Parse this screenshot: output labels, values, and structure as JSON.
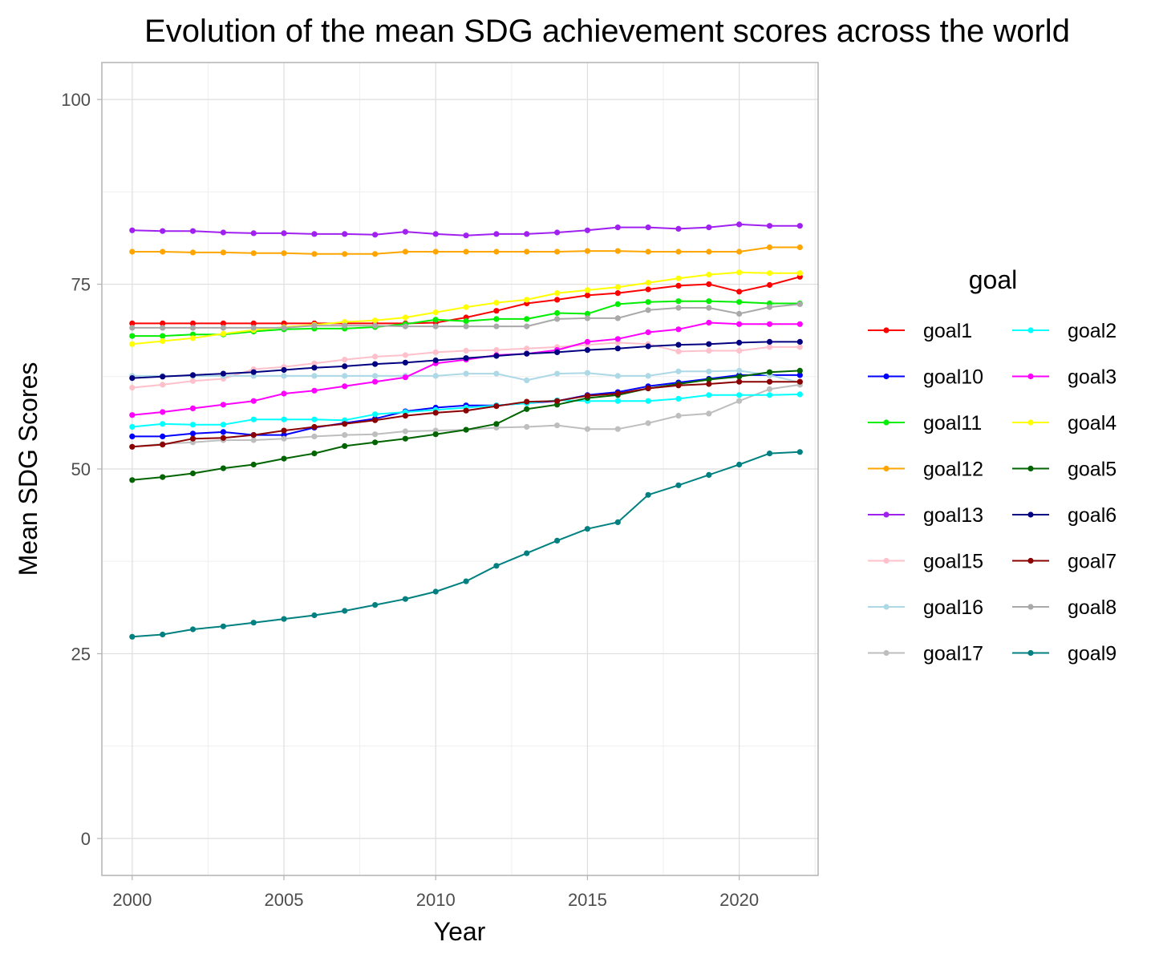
{
  "chart_data": {
    "type": "line",
    "title": "Evolution of the mean SDG achievement scores across the world",
    "xlabel": "Year",
    "ylabel": "Mean SDG Scores",
    "xlim": [
      1999,
      2022.6
    ],
    "ylim": [
      -5,
      105
    ],
    "x_ticks": [
      2000,
      2005,
      2010,
      2015,
      2020
    ],
    "y_ticks": [
      0,
      25,
      50,
      75,
      100
    ],
    "grid": true,
    "legend": {
      "title": "goal",
      "position": "right",
      "columns": 2
    },
    "x": [
      2000,
      2001,
      2002,
      2003,
      2004,
      2005,
      2006,
      2007,
      2008,
      2009,
      2010,
      2011,
      2012,
      2013,
      2014,
      2015,
      2016,
      2017,
      2018,
      2019,
      2020,
      2021,
      2022
    ],
    "series": [
      {
        "name": "goal1",
        "color": "#ff0000",
        "values": [
          69.7,
          69.7,
          69.7,
          69.7,
          69.7,
          69.7,
          69.7,
          69.7,
          69.7,
          69.7,
          69.8,
          70.5,
          71.4,
          72.4,
          72.9,
          73.5,
          73.8,
          74.3,
          74.8,
          75.0,
          74.0,
          74.9,
          76.0
        ]
      },
      {
        "name": "goal10",
        "color": "#0000ff",
        "values": [
          54.4,
          54.4,
          54.8,
          55.0,
          54.6,
          54.6,
          55.6,
          56.2,
          56.8,
          57.8,
          58.3,
          58.6,
          58.6,
          58.9,
          59.2,
          60.0,
          60.4,
          61.2,
          61.7,
          62.2,
          62.7,
          62.7,
          62.7
        ]
      },
      {
        "name": "goal11",
        "color": "#00ee00",
        "values": [
          68.0,
          68.0,
          68.2,
          68.2,
          68.6,
          68.9,
          69.0,
          69.0,
          69.2,
          69.6,
          70.2,
          70.0,
          70.3,
          70.3,
          71.1,
          71.0,
          72.3,
          72.6,
          72.7,
          72.7,
          72.6,
          72.4,
          72.4
        ]
      },
      {
        "name": "goal12",
        "color": "#ffa500",
        "values": [
          79.4,
          79.4,
          79.3,
          79.3,
          79.2,
          79.2,
          79.1,
          79.1,
          79.1,
          79.4,
          79.4,
          79.4,
          79.4,
          79.4,
          79.4,
          79.5,
          79.5,
          79.4,
          79.4,
          79.4,
          79.4,
          80.0,
          80.0
        ]
      },
      {
        "name": "goal13",
        "color": "#a020f0",
        "values": [
          82.3,
          82.2,
          82.2,
          82.0,
          81.9,
          81.9,
          81.8,
          81.8,
          81.7,
          82.1,
          81.8,
          81.6,
          81.8,
          81.8,
          82.0,
          82.3,
          82.7,
          82.7,
          82.5,
          82.7,
          83.1,
          82.9,
          82.9
        ]
      },
      {
        "name": "goal15",
        "color": "#ffc0cb",
        "values": [
          61.0,
          61.4,
          61.9,
          62.2,
          63.5,
          63.8,
          64.3,
          64.8,
          65.2,
          65.4,
          65.8,
          66.0,
          66.1,
          66.3,
          66.5,
          66.8,
          67.1,
          66.9,
          65.9,
          66.0,
          66.0,
          66.5,
          66.5
        ]
      },
      {
        "name": "goal16",
        "color": "#add8e6",
        "values": [
          62.6,
          62.6,
          62.6,
          62.6,
          62.6,
          62.6,
          62.6,
          62.6,
          62.6,
          62.6,
          62.6,
          62.9,
          62.9,
          62.0,
          62.9,
          63.0,
          62.6,
          62.6,
          63.2,
          63.2,
          63.3,
          62.7,
          61.7
        ]
      },
      {
        "name": "goal17",
        "color": "#bebebe",
        "values": [
          53.0,
          53.4,
          53.6,
          53.9,
          53.9,
          54.1,
          54.4,
          54.6,
          54.7,
          55.1,
          55.2,
          55.3,
          55.6,
          55.7,
          55.9,
          55.4,
          55.4,
          56.2,
          57.2,
          57.5,
          59.2,
          60.8,
          61.4
        ]
      },
      {
        "name": "goal2",
        "color": "#00ffff",
        "values": [
          55.7,
          56.1,
          56.0,
          56.0,
          56.7,
          56.7,
          56.7,
          56.6,
          57.4,
          57.7,
          58.0,
          58.3,
          58.6,
          58.9,
          59.3,
          59.2,
          59.2,
          59.2,
          59.5,
          60.0,
          60.0,
          60.0,
          60.1
        ]
      },
      {
        "name": "goal3",
        "color": "#ff00ff",
        "values": [
          57.3,
          57.7,
          58.2,
          58.7,
          59.2,
          60.2,
          60.6,
          61.2,
          61.8,
          62.4,
          64.3,
          64.8,
          65.4,
          65.6,
          66.1,
          67.2,
          67.6,
          68.5,
          68.9,
          69.8,
          69.6,
          69.6,
          69.6
        ]
      },
      {
        "name": "goal4",
        "color": "#ffff00",
        "values": [
          66.9,
          67.3,
          67.7,
          68.3,
          68.8,
          69.2,
          69.5,
          69.9,
          70.1,
          70.5,
          71.2,
          71.9,
          72.5,
          72.9,
          73.8,
          74.2,
          74.6,
          75.2,
          75.8,
          76.3,
          76.6,
          76.5,
          76.5
        ]
      },
      {
        "name": "goal5",
        "color": "#006400",
        "values": [
          48.5,
          48.9,
          49.4,
          50.1,
          50.6,
          51.4,
          52.1,
          53.1,
          53.6,
          54.1,
          54.7,
          55.3,
          56.1,
          58.1,
          58.7,
          59.6,
          60.0,
          60.9,
          61.5,
          62.1,
          62.5,
          63.1,
          63.3
        ]
      },
      {
        "name": "goal6",
        "color": "#000080",
        "values": [
          62.3,
          62.5,
          62.7,
          62.9,
          63.1,
          63.4,
          63.7,
          63.9,
          64.2,
          64.4,
          64.7,
          65.0,
          65.3,
          65.6,
          65.8,
          66.1,
          66.3,
          66.6,
          66.8,
          66.9,
          67.1,
          67.2,
          67.2
        ]
      },
      {
        "name": "goal7",
        "color": "#8b0000",
        "values": [
          53.0,
          53.3,
          54.1,
          54.2,
          54.6,
          55.2,
          55.7,
          56.1,
          56.6,
          57.2,
          57.6,
          57.9,
          58.5,
          59.1,
          59.2,
          59.9,
          60.2,
          60.9,
          61.3,
          61.5,
          61.8,
          61.8,
          61.8
        ]
      },
      {
        "name": "goal8",
        "color": "#a9a9a9",
        "values": [
          69.1,
          69.1,
          69.1,
          69.1,
          69.1,
          69.1,
          69.4,
          69.4,
          69.4,
          69.3,
          69.3,
          69.3,
          69.3,
          69.3,
          70.3,
          70.4,
          70.4,
          71.5,
          71.8,
          71.8,
          71.0,
          71.9,
          72.3
        ]
      },
      {
        "name": "goal9",
        "color": "#008080",
        "values": [
          27.3,
          27.6,
          28.3,
          28.7,
          29.2,
          29.7,
          30.2,
          30.8,
          31.6,
          32.4,
          33.4,
          34.8,
          36.9,
          38.6,
          40.3,
          41.9,
          42.8,
          46.5,
          47.8,
          49.2,
          50.6,
          52.1,
          52.3
        ]
      }
    ]
  }
}
